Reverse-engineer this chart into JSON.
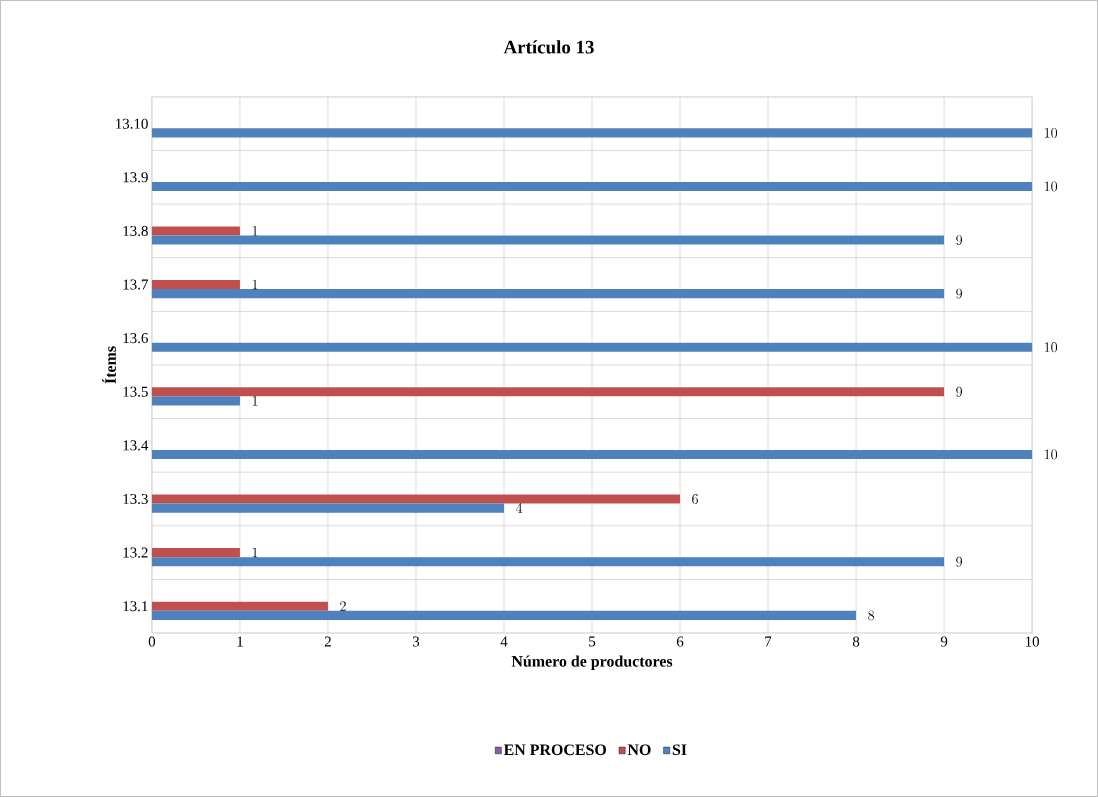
{
  "chart_data": {
    "type": "bar",
    "orientation": "horizontal",
    "title": "Artículo 13",
    "xlabel": "Número de productores",
    "ylabel": "Ítems",
    "categories": [
      "13.10",
      "13.9",
      "13.8",
      "13.7",
      "13.6",
      "13.5",
      "13.4",
      "13.3",
      "13.2",
      "13.1"
    ],
    "series": [
      {
        "name": "EN PROCESO",
        "color": "#8064a2",
        "values": [
          null,
          null,
          null,
          null,
          null,
          null,
          null,
          null,
          null,
          null
        ]
      },
      {
        "name": "NO",
        "color": "#c0504d",
        "values": [
          null,
          null,
          1,
          1,
          null,
          9,
          null,
          6,
          1,
          2
        ]
      },
      {
        "name": "SI",
        "color": "#4f81bd",
        "values": [
          10,
          10,
          9,
          9,
          10,
          1,
          10,
          4,
          9,
          8
        ]
      }
    ],
    "xlim": [
      0,
      10
    ],
    "xticks": [
      0,
      1,
      2,
      3,
      4,
      5,
      6,
      7,
      8,
      9,
      10
    ],
    "grid": true,
    "legend": "bottom",
    "data_labels": true
  }
}
